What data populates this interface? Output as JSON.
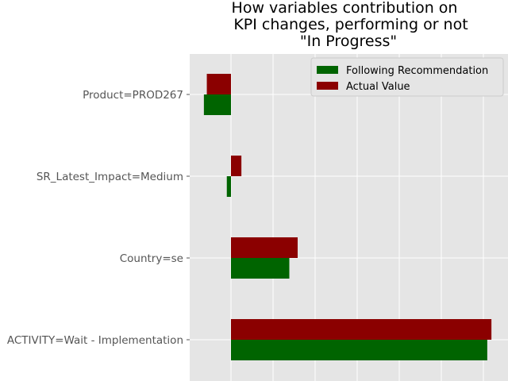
{
  "chart_data": {
    "type": "bar",
    "orientation": "horizontal",
    "title": [
      "How variables contribution on",
      "KPI changes, performing or not",
      "\"In Progress\""
    ],
    "categories": [
      "Product=PROD267",
      "SR_Latest_Impact=Medium",
      "Country=se",
      "ACTIVITY=Wait - Implementation"
    ],
    "series": [
      {
        "name": "Following Recommendation",
        "color": "#006400",
        "values": [
          -0.65,
          -0.1,
          1.4,
          6.15
        ]
      },
      {
        "name": "Actual Value",
        "color": "#8b0000",
        "values": [
          -0.58,
          0.25,
          1.6,
          6.25
        ]
      }
    ],
    "xlim": [
      -1.0,
      6.5
    ],
    "grid": true,
    "legend_position": "top-right",
    "xlabel": "",
    "ylabel": ""
  }
}
